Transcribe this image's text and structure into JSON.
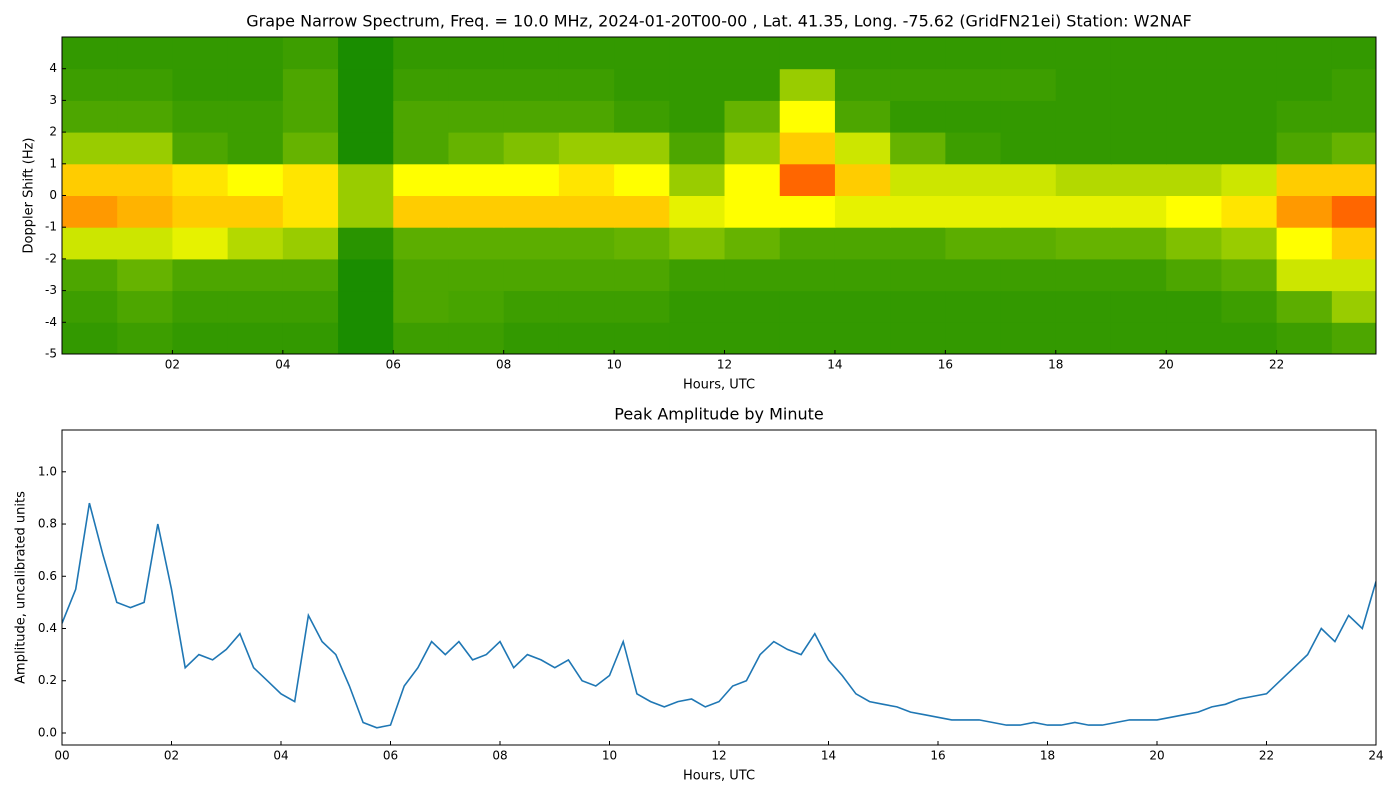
{
  "chart_data": [
    {
      "type": "heatmap",
      "title": "Grape Narrow Spectrum, Freq. = 10.0 MHz, 2024-01-20T00-00 , Lat.  41.35, Long. -75.62 (GridFN21ei) Station: W2NAF",
      "xlabel": "Hours, UTC",
      "ylabel": "Doppler Shift (Hz)",
      "colors": [
        "#008000",
        "#ffff00",
        "#ff0000"
      ],
      "x": [
        0.5,
        1.5,
        2.5,
        3.5,
        4.5,
        5.5,
        6.5,
        7.5,
        8.5,
        9.5,
        10.5,
        11.5,
        12.5,
        13.5,
        14.5,
        15.5,
        16.5,
        17.5,
        18.5,
        19.5,
        20.5,
        21.5,
        22.5,
        23.5
      ],
      "y": [
        -4.5,
        -3.5,
        -2.5,
        -1.5,
        -0.5,
        0.5,
        1.5,
        2.5,
        3.5,
        4.5
      ],
      "z": [
        [
          0.1,
          0.12,
          0.1,
          0.1,
          0.1,
          0.05,
          0.12,
          0.12,
          0.1,
          0.1,
          0.1,
          0.1,
          0.1,
          0.1,
          0.1,
          0.1,
          0.1,
          0.1,
          0.1,
          0.1,
          0.1,
          0.1,
          0.12,
          0.15
        ],
        [
          0.12,
          0.15,
          0.12,
          0.12,
          0.12,
          0.05,
          0.15,
          0.14,
          0.12,
          0.12,
          0.12,
          0.1,
          0.1,
          0.1,
          0.1,
          0.1,
          0.1,
          0.1,
          0.1,
          0.1,
          0.1,
          0.12,
          0.18,
          0.3
        ],
        [
          0.15,
          0.2,
          0.15,
          0.15,
          0.15,
          0.05,
          0.15,
          0.15,
          0.15,
          0.15,
          0.15,
          0.12,
          0.12,
          0.12,
          0.12,
          0.12,
          0.12,
          0.12,
          0.12,
          0.12,
          0.15,
          0.18,
          0.4,
          0.4
        ],
        [
          0.4,
          0.4,
          0.45,
          0.35,
          0.3,
          0.08,
          0.18,
          0.18,
          0.18,
          0.18,
          0.2,
          0.25,
          0.2,
          0.15,
          0.15,
          0.15,
          0.18,
          0.18,
          0.2,
          0.2,
          0.25,
          0.3,
          0.5,
          0.6
        ],
        [
          0.7,
          0.65,
          0.6,
          0.6,
          0.55,
          0.3,
          0.6,
          0.6,
          0.6,
          0.6,
          0.6,
          0.45,
          0.5,
          0.5,
          0.45,
          0.45,
          0.45,
          0.45,
          0.45,
          0.45,
          0.5,
          0.55,
          0.7,
          0.8
        ],
        [
          0.6,
          0.6,
          0.55,
          0.5,
          0.55,
          0.3,
          0.5,
          0.5,
          0.5,
          0.55,
          0.5,
          0.3,
          0.5,
          0.8,
          0.6,
          0.4,
          0.4,
          0.4,
          0.35,
          0.35,
          0.35,
          0.4,
          0.6,
          0.6
        ],
        [
          0.3,
          0.3,
          0.15,
          0.12,
          0.2,
          0.05,
          0.15,
          0.2,
          0.25,
          0.3,
          0.3,
          0.15,
          0.3,
          0.6,
          0.4,
          0.2,
          0.12,
          0.1,
          0.1,
          0.1,
          0.1,
          0.1,
          0.15,
          0.2
        ],
        [
          0.15,
          0.15,
          0.12,
          0.12,
          0.15,
          0.05,
          0.15,
          0.15,
          0.15,
          0.15,
          0.12,
          0.1,
          0.2,
          0.5,
          0.15,
          0.1,
          0.1,
          0.1,
          0.1,
          0.1,
          0.1,
          0.1,
          0.12,
          0.12
        ],
        [
          0.12,
          0.12,
          0.1,
          0.1,
          0.15,
          0.05,
          0.12,
          0.12,
          0.12,
          0.12,
          0.1,
          0.1,
          0.1,
          0.3,
          0.12,
          0.12,
          0.12,
          0.12,
          0.1,
          0.1,
          0.1,
          0.1,
          0.1,
          0.12
        ],
        [
          0.1,
          0.1,
          0.1,
          0.1,
          0.12,
          0.05,
          0.1,
          0.1,
          0.1,
          0.1,
          0.1,
          0.1,
          0.1,
          0.1,
          0.1,
          0.1,
          0.1,
          0.1,
          0.1,
          0.1,
          0.1,
          0.1,
          0.1,
          0.1
        ]
      ],
      "xlim": [
        0,
        23.8
      ],
      "ylim": [
        -5,
        5
      ],
      "xticks": [
        {
          "value": 2,
          "label": "02"
        },
        {
          "value": 4,
          "label": "04"
        },
        {
          "value": 6,
          "label": "06"
        },
        {
          "value": 8,
          "label": "08"
        },
        {
          "value": 10,
          "label": "10"
        },
        {
          "value": 12,
          "label": "12"
        },
        {
          "value": 14,
          "label": "14"
        },
        {
          "value": 16,
          "label": "16"
        },
        {
          "value": 18,
          "label": "18"
        },
        {
          "value": 20,
          "label": "20"
        },
        {
          "value": 22,
          "label": "22"
        }
      ],
      "yticks": [
        -5,
        -4,
        -3,
        -2,
        -1,
        0,
        1,
        2,
        3,
        4
      ]
    },
    {
      "type": "line",
      "title": "Peak Amplitude by Minute",
      "xlabel": "Hours, UTC",
      "ylabel": "Amplitude, uncalibrated units",
      "color": "#1f77b4",
      "x": [
        0,
        0.25,
        0.5,
        0.75,
        1,
        1.25,
        1.5,
        1.75,
        2,
        2.25,
        2.5,
        2.75,
        3,
        3.25,
        3.5,
        3.75,
        4,
        4.25,
        4.5,
        4.75,
        5,
        5.25,
        5.5,
        5.75,
        6,
        6.25,
        6.5,
        6.75,
        7,
        7.25,
        7.5,
        7.75,
        8,
        8.25,
        8.5,
        8.75,
        9,
        9.25,
        9.5,
        9.75,
        10,
        10.25,
        10.5,
        10.75,
        11,
        11.25,
        11.5,
        11.75,
        12,
        12.25,
        12.5,
        12.75,
        13,
        13.25,
        13.5,
        13.75,
        14,
        14.25,
        14.5,
        14.75,
        15,
        15.25,
        15.5,
        15.75,
        16,
        16.25,
        16.5,
        16.75,
        17,
        17.25,
        17.5,
        17.75,
        18,
        18.25,
        18.5,
        18.75,
        19,
        19.25,
        19.5,
        19.75,
        20,
        20.25,
        20.5,
        20.75,
        21,
        21.25,
        21.5,
        21.75,
        22,
        22.25,
        22.5,
        22.75,
        23,
        23.25,
        23.5,
        23.75,
        24
      ],
      "values": [
        0.42,
        0.55,
        0.88,
        0.68,
        0.5,
        0.48,
        0.5,
        0.8,
        0.55,
        0.25,
        0.3,
        0.28,
        0.32,
        0.38,
        0.25,
        0.2,
        0.15,
        0.12,
        0.45,
        0.35,
        0.3,
        0.18,
        0.04,
        0.02,
        0.03,
        0.18,
        0.25,
        0.35,
        0.3,
        0.35,
        0.28,
        0.3,
        0.35,
        0.25,
        0.3,
        0.28,
        0.25,
        0.28,
        0.2,
        0.18,
        0.22,
        0.35,
        0.15,
        0.12,
        0.1,
        0.12,
        0.13,
        0.1,
        0.12,
        0.18,
        0.2,
        0.3,
        0.35,
        0.32,
        0.3,
        0.38,
        0.28,
        0.22,
        0.15,
        0.12,
        0.11,
        0.1,
        0.08,
        0.07,
        0.06,
        0.05,
        0.05,
        0.05,
        0.04,
        0.03,
        0.03,
        0.04,
        0.03,
        0.03,
        0.04,
        0.03,
        0.03,
        0.04,
        0.05,
        0.05,
        0.05,
        0.06,
        0.07,
        0.08,
        0.1,
        0.11,
        0.13,
        0.14,
        0.15,
        0.2,
        0.25,
        0.3,
        0.4,
        0.35,
        0.45,
        0.4,
        0.58
      ],
      "xlim": [
        0,
        24
      ],
      "ylim": [
        -0.046,
        1.16
      ],
      "xticks": [
        {
          "value": 0,
          "label": "00"
        },
        {
          "value": 2,
          "label": "02"
        },
        {
          "value": 4,
          "label": "04"
        },
        {
          "value": 6,
          "label": "06"
        },
        {
          "value": 8,
          "label": "08"
        },
        {
          "value": 10,
          "label": "10"
        },
        {
          "value": 12,
          "label": "12"
        },
        {
          "value": 14,
          "label": "14"
        },
        {
          "value": 16,
          "label": "16"
        },
        {
          "value": 18,
          "label": "18"
        },
        {
          "value": 20,
          "label": "20"
        },
        {
          "value": 22,
          "label": "22"
        },
        {
          "value": 24,
          "label": "24"
        }
      ],
      "yticks": [
        {
          "value": 0,
          "label": "0.0"
        },
        {
          "value": 0.2,
          "label": "0.2"
        },
        {
          "value": 0.4,
          "label": "0.4"
        },
        {
          "value": 0.6,
          "label": "0.6"
        },
        {
          "value": 0.8,
          "label": "0.8"
        },
        {
          "value": 1.0,
          "label": "1.0"
        }
      ]
    }
  ]
}
